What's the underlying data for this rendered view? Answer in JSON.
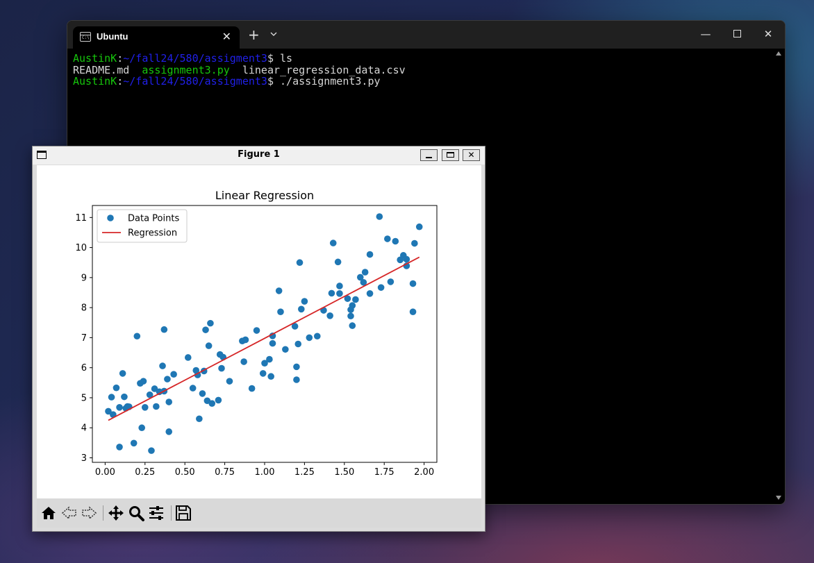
{
  "terminal": {
    "tab_title": "Ubuntu",
    "tab_close": "✕",
    "new_tab": "+",
    "dropdown": "⌄",
    "minimize": "—",
    "close": "✕",
    "lines": [
      {
        "user": "AustinK",
        "sep": ":",
        "path": "~/fall24/580/assigment3",
        "prompt": "$ ",
        "cmd": "ls"
      },
      {
        "files": [
          {
            "name": "README.md",
            "color": "#d7d7d7"
          },
          {
            "name": "assignment3.py",
            "color": "#16c60c"
          },
          {
            "name": "linear_regression_data.csv",
            "color": "#d7d7d7"
          }
        ]
      },
      {
        "user": "AustinK",
        "sep": ":",
        "path": "~/fall24/580/assigment3",
        "prompt": "$ ",
        "cmd": "./assignment3.py"
      }
    ]
  },
  "figure": {
    "window_title": "Figure 1",
    "close": "✕",
    "toolbar": [
      "home-icon",
      "back-icon",
      "forward-icon",
      "pan-icon",
      "zoom-icon",
      "configure-subplots-icon",
      "save-icon"
    ]
  },
  "chart_data": {
    "type": "scatter",
    "title": "Linear Regression",
    "xlabel": "",
    "ylabel": "",
    "xlim": [
      -0.08,
      2.08
    ],
    "ylim": [
      2.85,
      11.4
    ],
    "xticks": [
      0.0,
      0.25,
      0.5,
      0.75,
      1.0,
      1.25,
      1.5,
      1.75,
      2.0
    ],
    "xtick_labels": [
      "0.00",
      "0.25",
      "0.50",
      "0.75",
      "1.00",
      "1.25",
      "1.50",
      "1.75",
      "2.00"
    ],
    "yticks": [
      3,
      4,
      5,
      6,
      7,
      8,
      9,
      10,
      11
    ],
    "ytick_labels": [
      "3",
      "4",
      "5",
      "6",
      "7",
      "8",
      "9",
      "10",
      "11"
    ],
    "legend_position": "top-left",
    "series": [
      {
        "name": "Data Points",
        "kind": "scatter",
        "color": "#1f77b4",
        "x": [
          0.02,
          0.04,
          0.05,
          0.07,
          0.09,
          0.09,
          0.11,
          0.12,
          0.13,
          0.14,
          0.15,
          0.18,
          0.2,
          0.22,
          0.23,
          0.24,
          0.25,
          0.28,
          0.29,
          0.31,
          0.32,
          0.34,
          0.36,
          0.37,
          0.37,
          0.39,
          0.4,
          0.4,
          0.43,
          0.52,
          0.55,
          0.57,
          0.58,
          0.59,
          0.61,
          0.62,
          0.63,
          0.64,
          0.65,
          0.66,
          0.67,
          0.71,
          0.72,
          0.73,
          0.74,
          0.78,
          0.86,
          0.87,
          0.88,
          0.92,
          0.95,
          0.99,
          1.0,
          1.03,
          1.04,
          1.05,
          1.05,
          1.09,
          1.1,
          1.13,
          1.19,
          1.2,
          1.2,
          1.21,
          1.22,
          1.23,
          1.25,
          1.28,
          1.33,
          1.37,
          1.41,
          1.42,
          1.43,
          1.46,
          1.47,
          1.47,
          1.52,
          1.54,
          1.54,
          1.55,
          1.55,
          1.57,
          1.6,
          1.62,
          1.63,
          1.66,
          1.66,
          1.72,
          1.73,
          1.77,
          1.79,
          1.82,
          1.85,
          1.87,
          1.89,
          1.89,
          1.93,
          1.93,
          1.94,
          1.97
        ],
        "y": [
          4.55,
          5.02,
          4.44,
          5.33,
          4.68,
          3.36,
          5.81,
          5.03,
          4.65,
          4.71,
          4.7,
          3.49,
          7.05,
          5.48,
          4.0,
          5.55,
          4.68,
          5.1,
          3.24,
          5.3,
          4.71,
          5.2,
          6.06,
          5.22,
          7.27,
          5.62,
          3.87,
          4.86,
          5.78,
          6.34,
          5.32,
          5.91,
          5.76,
          4.3,
          5.14,
          5.89,
          7.26,
          4.9,
          6.73,
          7.48,
          4.81,
          4.92,
          6.44,
          5.98,
          6.35,
          5.55,
          6.89,
          6.2,
          6.93,
          5.31,
          7.24,
          5.81,
          6.15,
          6.28,
          5.71,
          7.06,
          6.81,
          8.56,
          7.86,
          6.61,
          7.38,
          6.03,
          5.6,
          6.79,
          9.5,
          7.95,
          8.21,
          7.0,
          7.05,
          7.91,
          7.73,
          8.48,
          10.15,
          9.52,
          8.72,
          8.47,
          8.3,
          7.93,
          7.72,
          8.07,
          7.4,
          8.27,
          9.01,
          8.84,
          9.18,
          8.47,
          9.77,
          11.03,
          8.67,
          10.29,
          8.86,
          10.21,
          9.59,
          9.74,
          9.61,
          9.39,
          7.86,
          8.8,
          10.14,
          10.69
        ]
      },
      {
        "name": "Regression",
        "kind": "line",
        "color": "#d62728",
        "x": [
          0.02,
          1.97
        ],
        "y": [
          4.25,
          9.68
        ]
      }
    ]
  }
}
